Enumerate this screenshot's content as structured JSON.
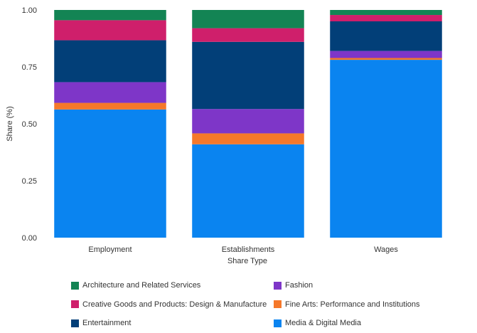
{
  "chart_data": {
    "type": "bar",
    "stacked": true,
    "categories": [
      "Employment",
      "Establishments",
      "Wages"
    ],
    "xlabel": "Share Type",
    "ylabel": "Share (%)",
    "ylim": [
      0,
      1
    ],
    "yticks": [
      "0.00",
      "0.25",
      "0.50",
      "0.75",
      "1.00"
    ],
    "grid": false,
    "legend_position": "bottom",
    "series": [
      {
        "name": "Media & Digital Media",
        "color": "#0a84f0",
        "values": [
          0.563,
          0.41,
          0.781
        ]
      },
      {
        "name": "Fine Arts: Performance and Institutions",
        "color": "#f5782a",
        "values": [
          0.029,
          0.048,
          0.008
        ]
      },
      {
        "name": "Fashion",
        "color": "#7e36c8",
        "values": [
          0.091,
          0.107,
          0.031
        ]
      },
      {
        "name": "Entertainment",
        "color": "#023f78",
        "values": [
          0.184,
          0.295,
          0.13
        ]
      },
      {
        "name": "Creative Goods and Products: Design & Manufacture",
        "color": "#cf1f6b",
        "values": [
          0.088,
          0.06,
          0.028
        ]
      },
      {
        "name": "Architecture and Related Services",
        "color": "#138454",
        "values": [
          0.045,
          0.08,
          0.022
        ]
      }
    ],
    "legend_order": [
      "Architecture and Related Services",
      "Fashion",
      "Creative Goods and Products: Design & Manufacture",
      "Fine Arts: Performance and Institutions",
      "Entertainment",
      "Media & Digital Media"
    ]
  }
}
